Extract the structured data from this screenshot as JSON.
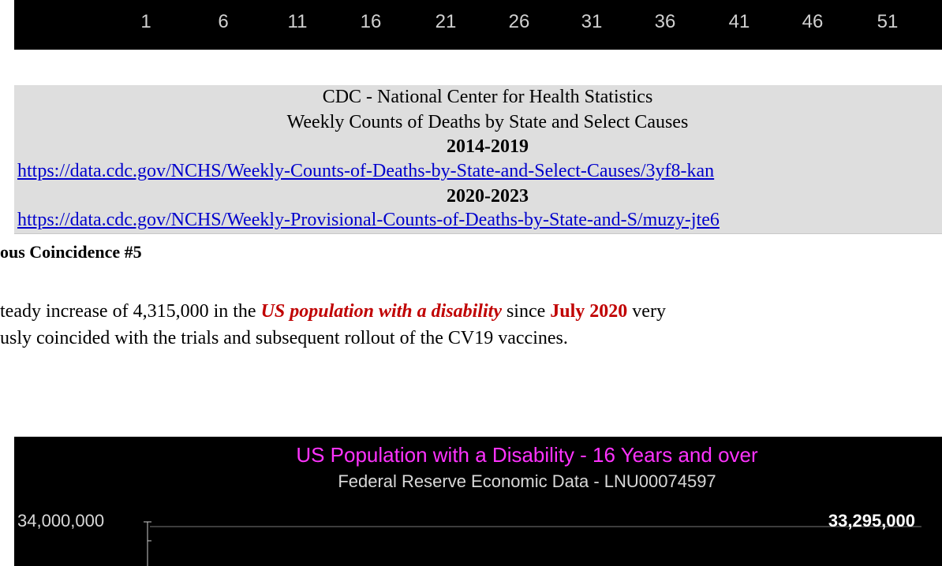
{
  "top_axis": {
    "labels": [
      "1",
      "6",
      "11",
      "16",
      "21",
      "26",
      "31",
      "36",
      "41",
      "46",
      "51"
    ]
  },
  "source_box": {
    "line1": "CDC - National Center for Health Statistics",
    "line2": "Weekly Counts of Deaths by State and Select Causes",
    "period1": "2014-2019",
    "link1": "https://data.cdc.gov/NCHS/Weekly-Counts-of-Deaths-by-State-and-Select-Causes/3yf8-kan",
    "period2": "2020-2023",
    "link2": "https://data.cdc.gov/NCHS/Weekly-Provisional-Counts-of-Deaths-by-State-and-S/muzy-jte6"
  },
  "heading": "ous Coincidence #5",
  "paragraph": {
    "part1": "teady increase of 4,315,000 in the ",
    "highlight1": "US population with a disability",
    "part2": " since ",
    "highlight2": "July 2020",
    "part3": " very",
    "line2": "usly coincided with the trials and subsequent rollout of the CV19 vaccines."
  },
  "chart": {
    "title": "US Population with a Disability - 16 Years and over",
    "subtitle": "Federal Reserve Economic Data - LNU00074597",
    "ytick": "34,000,000",
    "value_label": "33,295,000"
  }
}
